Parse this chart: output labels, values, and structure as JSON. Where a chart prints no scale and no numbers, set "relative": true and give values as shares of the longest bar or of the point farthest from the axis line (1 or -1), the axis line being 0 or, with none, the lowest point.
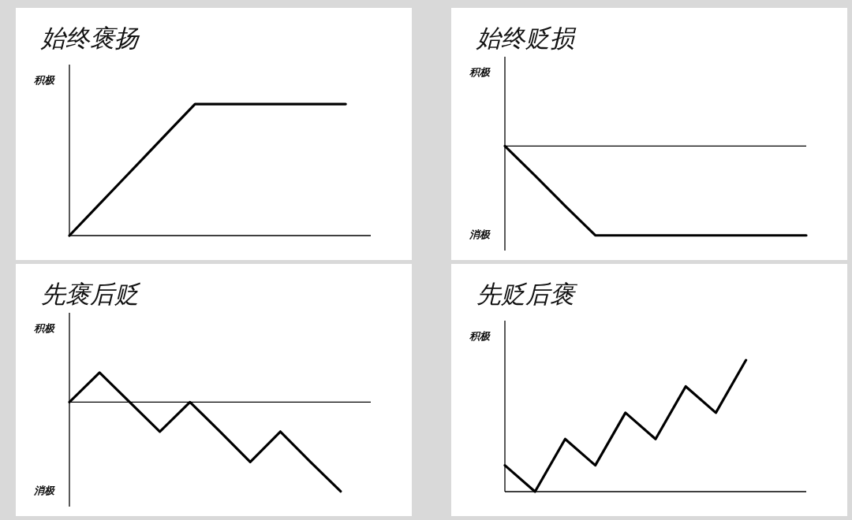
{
  "chart_data": [
    {
      "type": "line",
      "title": "始终褒扬",
      "relative": true,
      "color": "#000000",
      "categories": [
        null,
        null,
        null,
        null,
        null,
        null,
        null,
        null,
        null,
        null,
        null,
        null,
        null
      ],
      "values": [
        0,
        0.2,
        0.4,
        0.6,
        0.8,
        1,
        1,
        1,
        1,
        1,
        1,
        1,
        null
      ],
      "annotations": [
        "积极"
      ]
    },
    {
      "type": "line",
      "title": "始终贬损",
      "relative": true,
      "color": "#000000",
      "categories": [
        null,
        null,
        null,
        null,
        null,
        null,
        null,
        null,
        null,
        null,
        null
      ],
      "values": [
        0,
        -0.33,
        -0.67,
        -1,
        -1,
        -1,
        -1,
        -1,
        -1,
        -1,
        -1
      ],
      "annotations": [
        "积极",
        "消极"
      ]
    },
    {
      "type": "line",
      "title": "先褒后贬",
      "relative": true,
      "color": "#000000",
      "categories": [
        null,
        null,
        null,
        null,
        null,
        null,
        null,
        null,
        null,
        null,
        null
      ],
      "values": [
        0,
        0.33,
        0,
        -0.33,
        0,
        -0.33,
        -0.67,
        -0.33,
        -0.67,
        -1,
        null
      ],
      "annotations": [
        "积极",
        "消极"
      ]
    },
    {
      "type": "line",
      "title": "先贬后褒",
      "relative": true,
      "color": "#000000",
      "categories": [
        null,
        null,
        null,
        null,
        null,
        null,
        null,
        null,
        null,
        null,
        null
      ],
      "values": [
        0.2,
        0,
        0.4,
        0.2,
        0.6,
        0.4,
        0.8,
        0.6,
        1,
        null,
        null
      ],
      "annotations": [
        "积极"
      ]
    }
  ]
}
